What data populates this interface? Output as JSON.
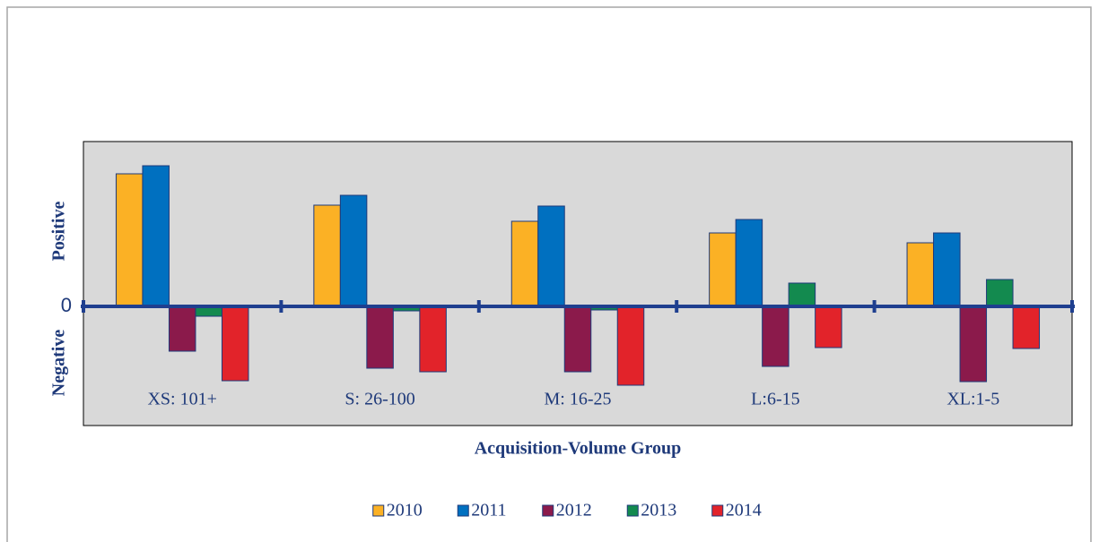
{
  "chart_data": {
    "type": "bar",
    "x_label": "Acquisition-Volume Group",
    "y_axis_labels": [
      "Positive",
      "Negative"
    ],
    "categories": [
      "XS: 101+",
      "S: 26-100",
      "M: 16-25",
      "L:6-15",
      "XL:1-5"
    ],
    "series": [
      {
        "name": "2010",
        "color": "#fbb125",
        "values": [
          14.8,
          11.3,
          9.5,
          8.2,
          7.1
        ]
      },
      {
        "name": "2011",
        "color": "#0070c0",
        "values": [
          15.7,
          12.4,
          11.2,
          9.7,
          8.2
        ]
      },
      {
        "name": "2012",
        "color": "#8b1a4b",
        "values": [
          -5.0,
          -6.9,
          -7.3,
          -6.7,
          -8.4
        ]
      },
      {
        "name": "2013",
        "color": "#138a4f",
        "values": [
          -1.1,
          -0.5,
          -0.4,
          2.6,
          3.0
        ]
      },
      {
        "name": "2014",
        "color": "#e2232a",
        "values": [
          -8.3,
          -7.3,
          -8.8,
          -4.6,
          -4.7
        ]
      }
    ],
    "ylim": [
      -13.3,
      18.4
    ],
    "yticks": [
      0
    ],
    "grid": false
  }
}
